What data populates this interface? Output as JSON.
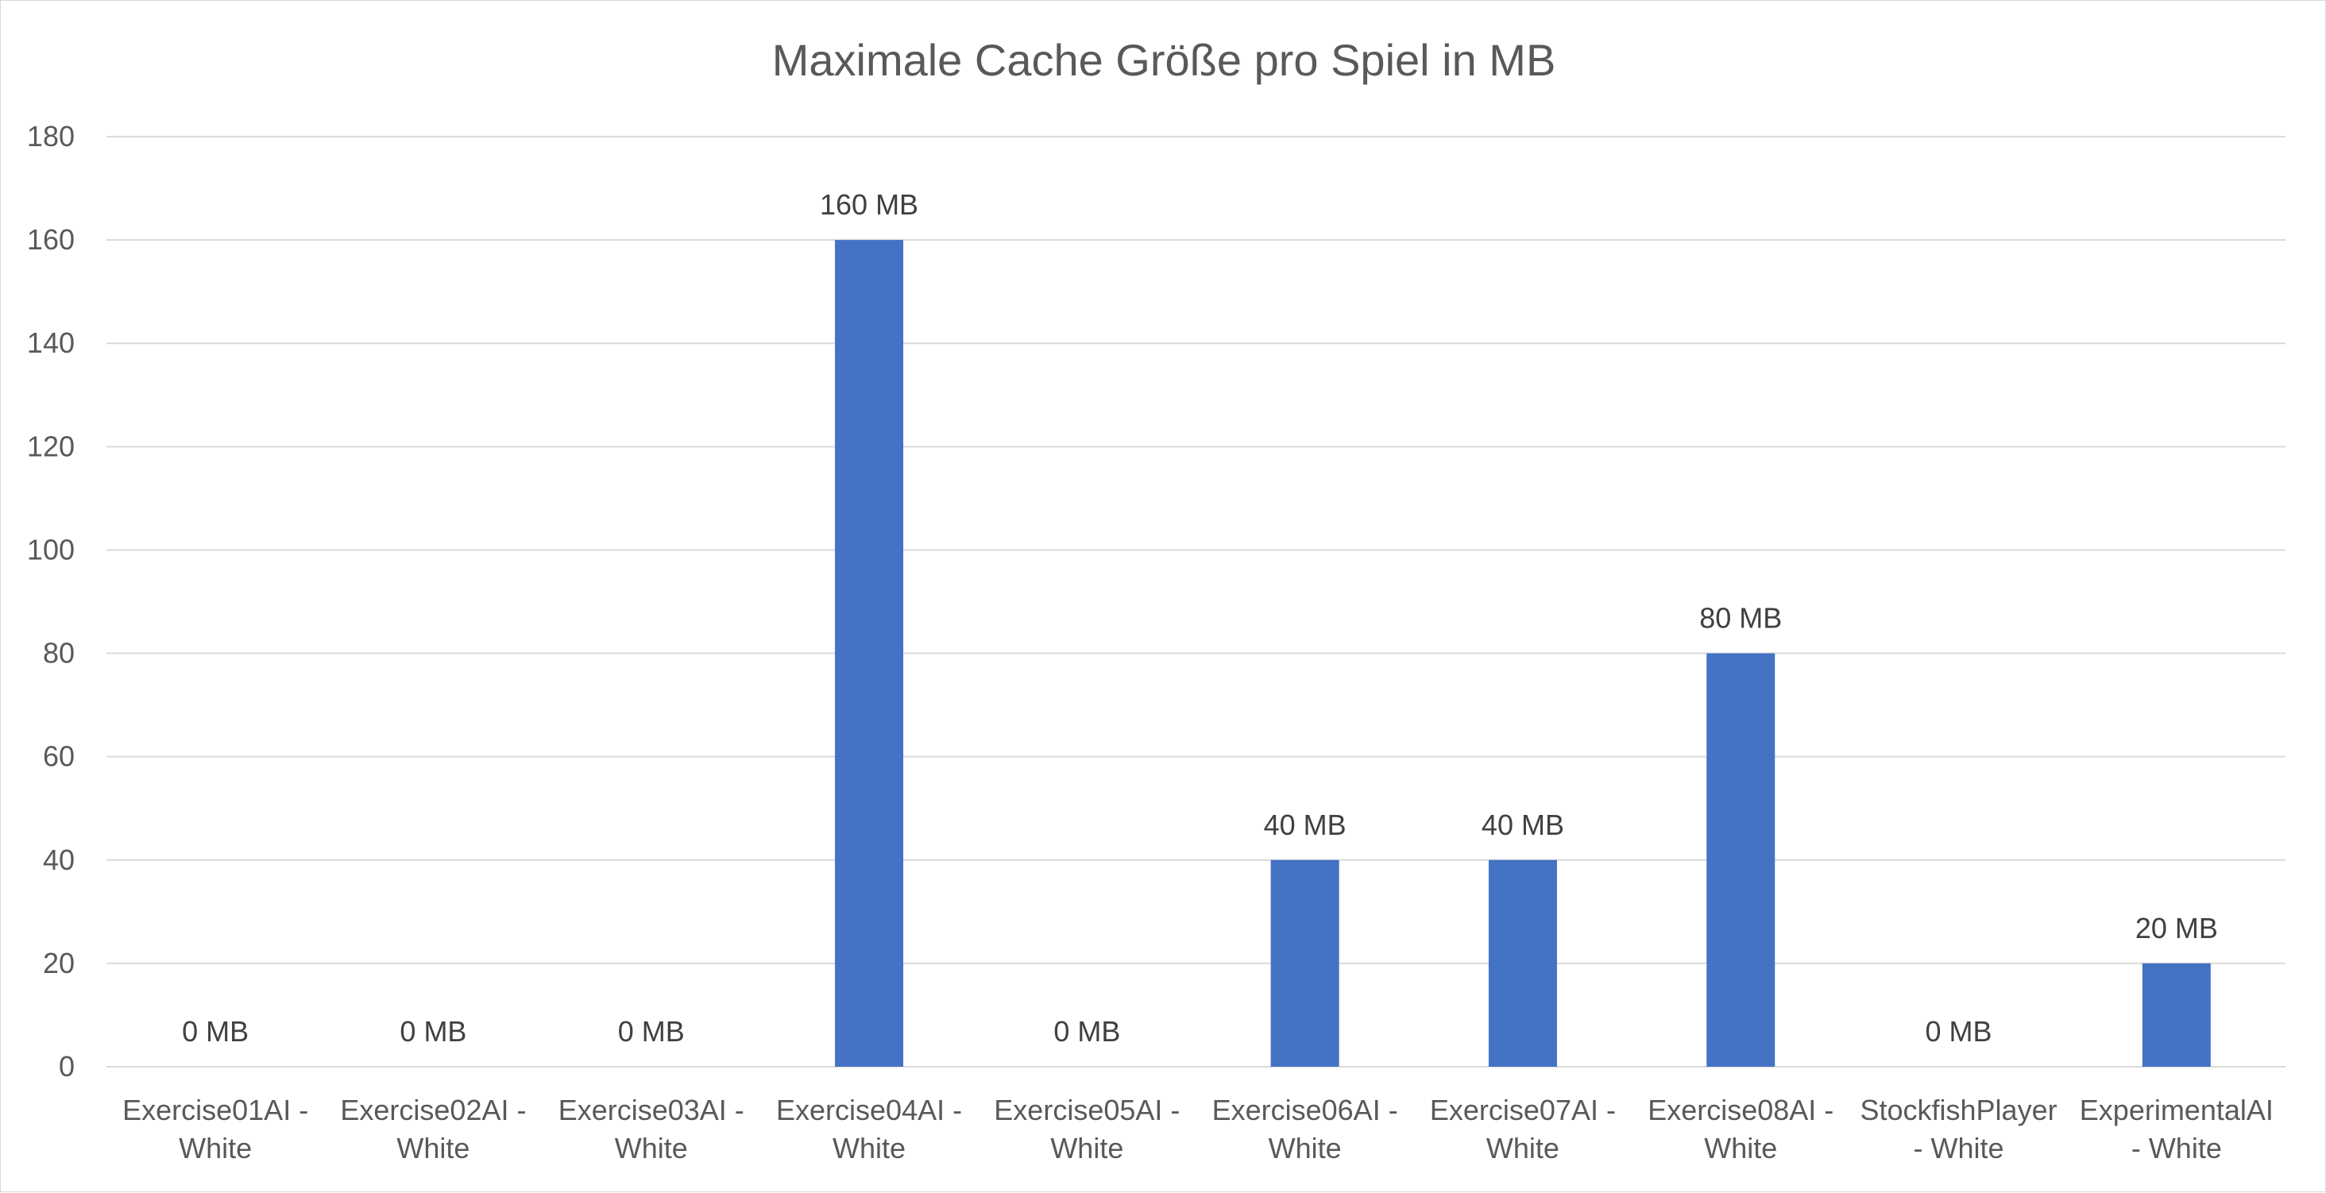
{
  "chart_data": {
    "type": "bar",
    "title": "Maximale Cache Größe pro Spiel in MB",
    "xlabel": "",
    "ylabel": "",
    "categories": [
      [
        "Exercise01AI -",
        "White"
      ],
      [
        "Exercise02AI -",
        "White"
      ],
      [
        "Exercise03AI -",
        "White"
      ],
      [
        "Exercise04AI -",
        "White"
      ],
      [
        "Exercise05AI -",
        "White"
      ],
      [
        "Exercise06AI -",
        "White"
      ],
      [
        "Exercise07AI -",
        "White"
      ],
      [
        "Exercise08AI -",
        "White"
      ],
      [
        "StockfishPlayer",
        "- White"
      ],
      [
        "ExperimentalAI",
        "- White"
      ]
    ],
    "values": [
      0,
      0,
      0,
      160,
      0,
      40,
      40,
      80,
      0,
      20
    ],
    "data_labels": [
      "0 MB",
      "0 MB",
      "0 MB",
      "160 MB",
      "0 MB",
      "40 MB",
      "40 MB",
      "80 MB",
      "0 MB",
      "20 MB"
    ],
    "ylim": [
      0,
      180
    ],
    "yticks": [
      0,
      20,
      40,
      60,
      80,
      100,
      120,
      140,
      160,
      180
    ],
    "grid": true,
    "legend": "none",
    "colors": {
      "bar": "#4472C4",
      "grid": "#d9d9d9",
      "axis_text": "#595959",
      "title": "#595959",
      "data_label": "#404040"
    }
  }
}
